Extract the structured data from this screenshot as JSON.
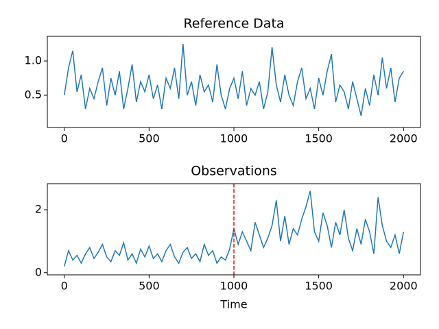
{
  "chart_data": [
    {
      "type": "line",
      "title": "Reference Data",
      "color": "#1f77b4",
      "x": [
        0,
        25,
        50,
        75,
        100,
        125,
        150,
        175,
        200,
        225,
        250,
        275,
        300,
        325,
        350,
        375,
        400,
        425,
        450,
        475,
        500,
        525,
        550,
        575,
        600,
        625,
        650,
        675,
        700,
        725,
        750,
        775,
        800,
        825,
        850,
        875,
        900,
        925,
        950,
        975,
        1000,
        1025,
        1050,
        1075,
        1100,
        1125,
        1150,
        1175,
        1200,
        1225,
        1250,
        1275,
        1300,
        1325,
        1350,
        1375,
        1400,
        1425,
        1450,
        1475,
        1500,
        1525,
        1550,
        1575,
        1600,
        1625,
        1650,
        1675,
        1700,
        1725,
        1750,
        1775,
        1800,
        1825,
        1850,
        1875,
        1900,
        1925,
        1950,
        1975,
        2000
      ],
      "values": [
        0.5,
        0.9,
        1.15,
        0.55,
        0.8,
        0.3,
        0.6,
        0.45,
        0.7,
        0.9,
        0.35,
        0.75,
        0.5,
        0.85,
        0.3,
        0.6,
        0.95,
        0.4,
        0.7,
        0.55,
        0.8,
        0.45,
        0.65,
        0.3,
        0.75,
        0.6,
        0.9,
        0.45,
        1.25,
        0.5,
        0.7,
        0.35,
        0.8,
        0.55,
        0.65,
        0.4,
        0.95,
        0.5,
        0.3,
        0.6,
        0.75,
        0.45,
        0.85,
        0.35,
        0.6,
        0.5,
        0.7,
        0.3,
        0.55,
        1.2,
        0.65,
        0.4,
        0.8,
        0.5,
        0.35,
        0.7,
        0.9,
        0.45,
        0.6,
        0.3,
        0.75,
        0.5,
        0.85,
        1.1,
        0.4,
        0.65,
        0.55,
        0.3,
        0.7,
        0.45,
        0.2,
        0.6,
        0.35,
        0.8,
        0.5,
        1.05,
        0.6,
        0.9,
        0.4,
        0.75,
        0.85
      ],
      "xlim": [
        -100,
        2100
      ],
      "xticks": [
        0,
        500,
        1000,
        1500,
        2000
      ],
      "ylim": [
        0.03,
        1.36
      ],
      "yticks": [
        0.5,
        {
          "value": 1,
          "label": "1.0"
        }
      ]
    },
    {
      "type": "line",
      "title": "Observations",
      "x_label": "Time",
      "color": "#1f77b4",
      "x": [
        0,
        25,
        50,
        75,
        100,
        125,
        150,
        175,
        200,
        225,
        250,
        275,
        300,
        325,
        350,
        375,
        400,
        425,
        450,
        475,
        500,
        525,
        550,
        575,
        600,
        625,
        650,
        675,
        700,
        725,
        750,
        775,
        800,
        825,
        850,
        875,
        900,
        925,
        950,
        975,
        1000,
        1025,
        1050,
        1075,
        1100,
        1125,
        1150,
        1175,
        1200,
        1225,
        1250,
        1275,
        1300,
        1325,
        1350,
        1375,
        1400,
        1425,
        1450,
        1475,
        1500,
        1525,
        1550,
        1575,
        1600,
        1625,
        1650,
        1675,
        1700,
        1725,
        1750,
        1775,
        1800,
        1825,
        1850,
        1875,
        1900,
        1925,
        1950,
        1975,
        2000
      ],
      "values": [
        0.2,
        0.7,
        0.4,
        0.55,
        0.3,
        0.6,
        0.8,
        0.45,
        0.65,
        0.9,
        0.5,
        0.35,
        0.7,
        0.55,
        0.95,
        0.4,
        0.6,
        0.3,
        0.75,
        0.5,
        0.85,
        0.45,
        0.6,
        0.35,
        0.7,
        0.9,
        0.5,
        0.3,
        0.65,
        0.8,
        0.45,
        0.6,
        0.35,
        0.9,
        0.55,
        0.7,
        0.3,
        0.5,
        0.4,
        0.75,
        1.4,
        0.9,
        1.3,
        1.0,
        0.7,
        1.6,
        1.2,
        0.8,
        1.1,
        1.5,
        2.3,
        1.0,
        1.8,
        0.9,
        1.4,
        1.2,
        1.7,
        2.1,
        2.6,
        1.3,
        1.0,
        1.9,
        1.5,
        0.8,
        1.6,
        1.2,
        2.0,
        1.1,
        0.7,
        1.4,
        0.9,
        1.7,
        1.3,
        0.6,
        2.4,
        1.5,
        1.0,
        0.8,
        1.2,
        0.6,
        1.3
      ],
      "xlim": [
        -100,
        2100
      ],
      "xticks": [
        0,
        500,
        1000,
        1500,
        2000
      ],
      "ylim": [
        -0.07,
        2.83
      ],
      "yticks": [
        0,
        2
      ],
      "vline": {
        "x": 1000,
        "color": "#ff0000"
      }
    }
  ]
}
